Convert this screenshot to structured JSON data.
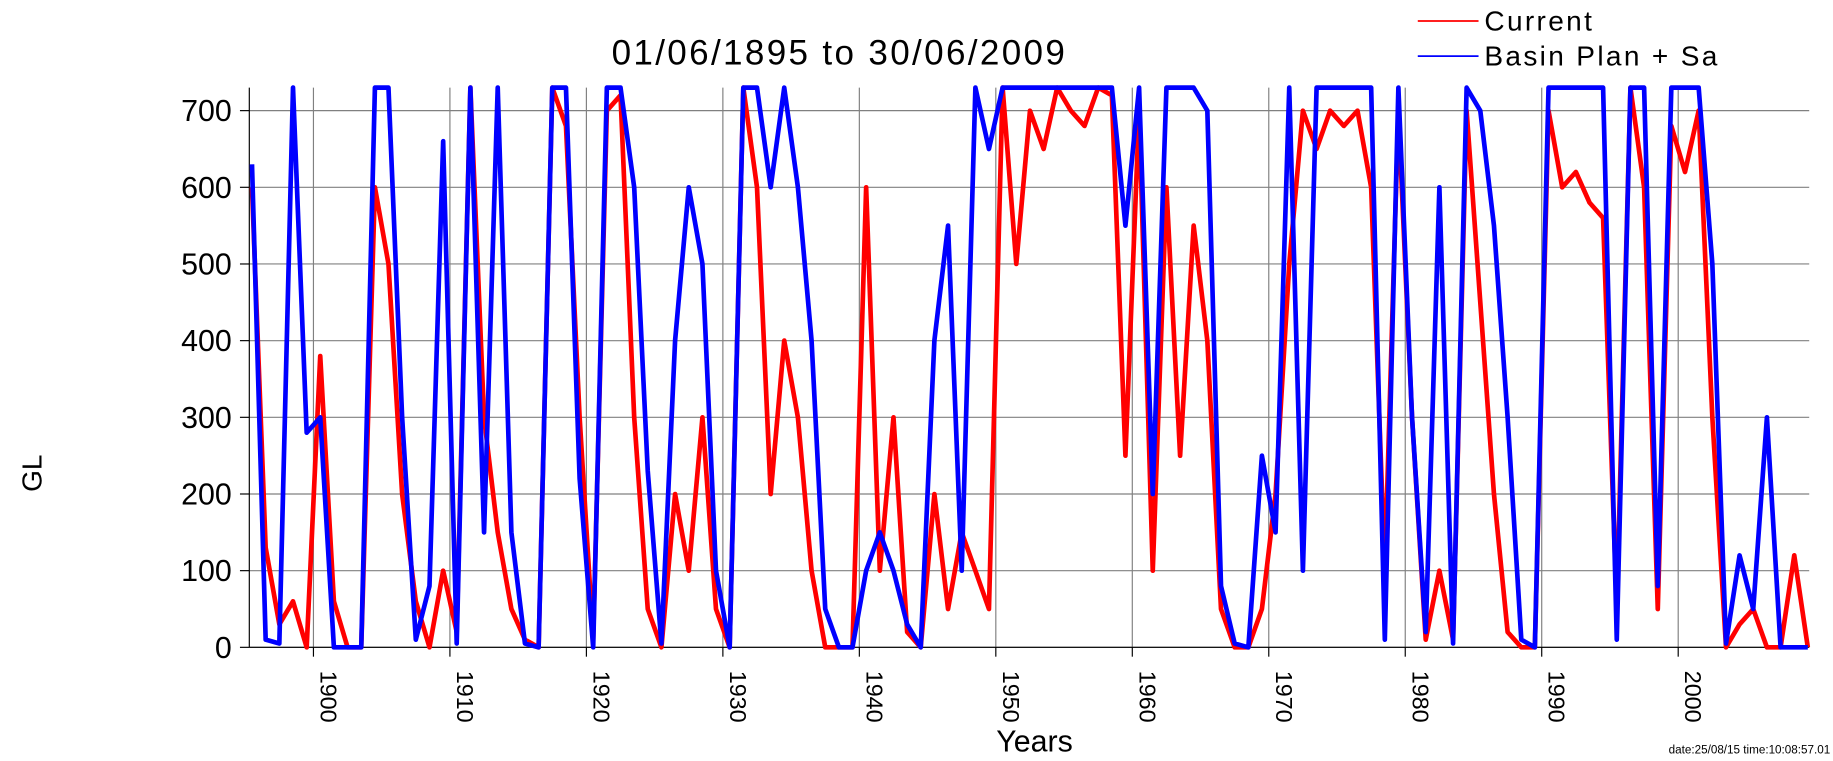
{
  "chart_data": {
    "type": "line",
    "title": "01/06/1895 to 30/06/2009",
    "xlabel": "Years",
    "ylabel": "GL",
    "footer": "date:25/08/15 time:10:08:57.01",
    "x": [
      1895.5,
      1896.5,
      1897.5,
      1898.5,
      1899.5,
      1900.5,
      1901.5,
      1902.5,
      1903.5,
      1904.5,
      1905.5,
      1906.5,
      1907.5,
      1908.5,
      1909.5,
      1910.5,
      1911.5,
      1912.5,
      1913.5,
      1914.5,
      1915.5,
      1916.5,
      1917.5,
      1918.5,
      1919.5,
      1920.5,
      1921.5,
      1922.5,
      1923.5,
      1924.5,
      1925.5,
      1926.5,
      1927.5,
      1928.5,
      1929.5,
      1930.5,
      1931.5,
      1932.5,
      1933.5,
      1934.5,
      1935.5,
      1936.5,
      1937.5,
      1938.5,
      1939.5,
      1940.5,
      1941.5,
      1942.5,
      1943.5,
      1944.5,
      1945.5,
      1946.5,
      1947.5,
      1948.5,
      1949.5,
      1950.5,
      1951.5,
      1952.5,
      1953.5,
      1954.5,
      1955.5,
      1956.5,
      1957.5,
      1958.5,
      1959.5,
      1960.5,
      1961.5,
      1962.5,
      1963.5,
      1964.5,
      1965.5,
      1966.5,
      1967.5,
      1968.5,
      1969.5,
      1970.5,
      1971.5,
      1972.5,
      1973.5,
      1974.5,
      1975.5,
      1976.5,
      1977.5,
      1978.5,
      1979.5,
      1980.5,
      1981.5,
      1982.5,
      1983.5,
      1984.5,
      1985.5,
      1986.5,
      1987.5,
      1988.5,
      1989.5,
      1990.5,
      1991.5,
      1992.5,
      1993.5,
      1994.5,
      1995.5,
      1996.5,
      1997.5,
      1998.5,
      1999.5,
      2000.5,
      2001.5,
      2002.5,
      2003.5,
      2004.5,
      2005.5,
      2006.5,
      2007.5,
      2008.5,
      2009.5
    ],
    "series": [
      {
        "name": "Current",
        "color": "#ff0000",
        "values": [
          600,
          130,
          30,
          60,
          0,
          380,
          60,
          0,
          0,
          600,
          500,
          200,
          60,
          0,
          100,
          20,
          730,
          300,
          150,
          50,
          10,
          0,
          730,
          680,
          300,
          10,
          700,
          720,
          300,
          50,
          0,
          200,
          100,
          300,
          50,
          0,
          730,
          600,
          200,
          400,
          300,
          100,
          0,
          0,
          0,
          600,
          100,
          300,
          20,
          0,
          200,
          50,
          150,
          100,
          50,
          730,
          500,
          700,
          650,
          730,
          700,
          680,
          730,
          720,
          250,
          700,
          100,
          600,
          250,
          550,
          400,
          50,
          0,
          0,
          50,
          200,
          500,
          700,
          650,
          700,
          680,
          700,
          600,
          100,
          700,
          300,
          10,
          100,
          10,
          700,
          450,
          200,
          20,
          0,
          0,
          700,
          600,
          620,
          580,
          560,
          50,
          730,
          600,
          50,
          680,
          620,
          700,
          300,
          0,
          30,
          50,
          0,
          0,
          120,
          0
        ]
      },
      {
        "name": "Basin Plan + Sa",
        "color": "#0000ff",
        "values": [
          630,
          10,
          5,
          730,
          280,
          300,
          0,
          0,
          0,
          730,
          730,
          300,
          10,
          80,
          660,
          5,
          730,
          150,
          730,
          150,
          5,
          0,
          730,
          730,
          220,
          0,
          730,
          730,
          600,
          230,
          5,
          400,
          600,
          500,
          100,
          0,
          730,
          730,
          600,
          730,
          600,
          400,
          50,
          0,
          0,
          100,
          150,
          100,
          30,
          0,
          400,
          550,
          100,
          730,
          650,
          730,
          730,
          730,
          730,
          730,
          730,
          730,
          730,
          730,
          550,
          730,
          200,
          730,
          730,
          730,
          700,
          80,
          5,
          0,
          250,
          150,
          730,
          100,
          730,
          730,
          730,
          730,
          730,
          10,
          730,
          300,
          20,
          600,
          5,
          730,
          700,
          550,
          300,
          10,
          0,
          730,
          730,
          730,
          730,
          730,
          10,
          730,
          730,
          80,
          730,
          730,
          730,
          500,
          5,
          120,
          50,
          300,
          0,
          0,
          0
        ]
      }
    ],
    "xlim": [
      1895.3,
      2009.6
    ],
    "xticks": [
      1900,
      1910,
      1920,
      1930,
      1940,
      1950,
      1960,
      1970,
      1980,
      1990,
      2000
    ],
    "ylim": [
      0,
      730
    ],
    "yticks": [
      0,
      100,
      200,
      300,
      400,
      500,
      600,
      700
    ],
    "grid": true
  }
}
